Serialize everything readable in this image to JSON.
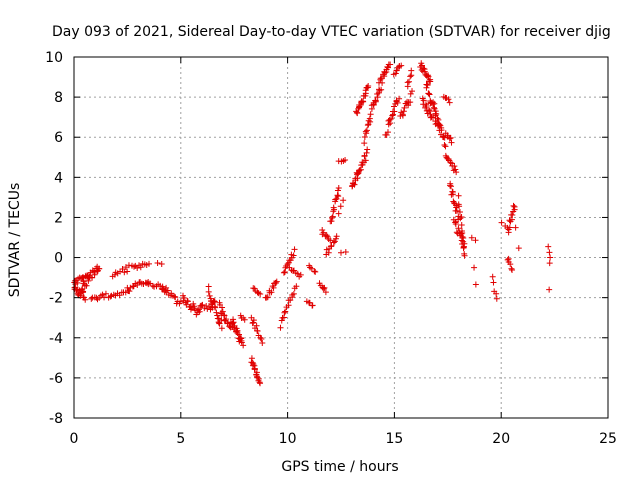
{
  "chart_data": {
    "type": "scatter",
    "title": "Day 093 of 2021, Sidereal Day-to-day VTEC variation (SDTVAR) for receiver djig",
    "xlabel": "GPS time / hours",
    "ylabel": "SDTVAR / TECUs",
    "xlim": [
      0,
      25
    ],
    "ylim": [
      -8,
      10
    ],
    "xticks": [
      0,
      5,
      10,
      15,
      20,
      25
    ],
    "yticks": [
      -8,
      -6,
      -4,
      -2,
      0,
      2,
      4,
      6,
      8,
      10
    ],
    "grid": true,
    "marker": "+",
    "color": "#e00000",
    "series": [
      {
        "name": "SDTVAR",
        "segments": [
          {
            "x0": 0.0,
            "x1": 0.5,
            "y0": -1.5,
            "y1": -1.9,
            "n": 20,
            "spread": 0.5
          },
          {
            "x0": 0.0,
            "x1": 0.7,
            "y0": -1.2,
            "y1": -1.0,
            "n": 14,
            "spread": 0.3
          },
          {
            "x0": 0.4,
            "x1": 1.2,
            "y0": -1.5,
            "y1": -0.4,
            "n": 24,
            "spread": 0.5
          },
          {
            "x0": 0.8,
            "x1": 1.5,
            "y0": -2.1,
            "y1": -1.9,
            "n": 10,
            "spread": 0.2
          },
          {
            "x0": 1.6,
            "x1": 2.6,
            "y0": -2.0,
            "y1": -1.7,
            "n": 12,
            "spread": 0.2
          },
          {
            "x0": 1.8,
            "x1": 2.6,
            "y0": -0.9,
            "y1": -0.5,
            "n": 10,
            "spread": 0.3
          },
          {
            "x0": 2.5,
            "x1": 3.5,
            "y0": -1.6,
            "y1": -1.1,
            "n": 14,
            "spread": 0.3
          },
          {
            "x0": 2.7,
            "x1": 3.5,
            "y0": -0.5,
            "y1": -0.3,
            "n": 10,
            "spread": 0.2
          },
          {
            "x0": 3.5,
            "x1": 4.3,
            "y0": -1.3,
            "y1": -1.5,
            "n": 10,
            "spread": 0.2
          },
          {
            "x0": 3.9,
            "x1": 4.1,
            "y0": -0.3,
            "y1": -0.3,
            "n": 2,
            "spread": 0.1
          },
          {
            "x0": 4.1,
            "x1": 5.0,
            "y0": -1.5,
            "y1": -2.3,
            "n": 16,
            "spread": 0.3
          },
          {
            "x0": 5.1,
            "x1": 5.9,
            "y0": -2.1,
            "y1": -2.8,
            "n": 20,
            "spread": 0.4
          },
          {
            "x0": 5.9,
            "x1": 6.5,
            "y0": -2.3,
            "y1": -2.6,
            "n": 10,
            "spread": 0.3
          },
          {
            "x0": 6.3,
            "x1": 6.9,
            "y0": -1.6,
            "y1": -3.3,
            "n": 22,
            "spread": 0.5
          },
          {
            "x0": 6.8,
            "x1": 7.4,
            "y0": -2.5,
            "y1": -3.4,
            "n": 18,
            "spread": 0.5
          },
          {
            "x0": 7.4,
            "x1": 7.9,
            "y0": -3.2,
            "y1": -4.3,
            "n": 22,
            "spread": 0.4
          },
          {
            "x0": 7.8,
            "x1": 8.0,
            "y0": -2.9,
            "y1": -3.1,
            "n": 4,
            "spread": 0.1
          },
          {
            "x0": 8.3,
            "x1": 8.7,
            "y0": -5.1,
            "y1": -6.3,
            "n": 18,
            "spread": 0.2
          },
          {
            "x0": 8.3,
            "x1": 8.8,
            "y0": -3.0,
            "y1": -4.1,
            "n": 12,
            "spread": 0.4
          },
          {
            "x0": 8.4,
            "x1": 8.7,
            "y0": -1.6,
            "y1": -1.8,
            "n": 6,
            "spread": 0.2
          },
          {
            "x0": 9.0,
            "x1": 9.5,
            "y0": -2.0,
            "y1": -1.2,
            "n": 12,
            "spread": 0.3
          },
          {
            "x0": 9.5,
            "x1": 9.8,
            "y0": -3.5,
            "y1": -3.5,
            "n": 1,
            "spread": 0.0
          },
          {
            "x0": 9.7,
            "x1": 10.4,
            "y0": -3.1,
            "y1": -1.5,
            "n": 14,
            "spread": 0.3
          },
          {
            "x0": 9.8,
            "x1": 10.3,
            "y0": -0.8,
            "y1": 0.3,
            "n": 12,
            "spread": 0.3
          },
          {
            "x0": 10.1,
            "x1": 10.6,
            "y0": -0.6,
            "y1": -0.9,
            "n": 8,
            "spread": 0.2
          },
          {
            "x0": 10.9,
            "x1": 11.2,
            "y0": -2.2,
            "y1": -2.4,
            "n": 5,
            "spread": 0.1
          },
          {
            "x0": 11.0,
            "x1": 11.3,
            "y0": -0.4,
            "y1": -0.8,
            "n": 5,
            "spread": 0.2
          },
          {
            "x0": 11.5,
            "x1": 11.8,
            "y0": -1.3,
            "y1": -1.7,
            "n": 6,
            "spread": 0.3
          },
          {
            "x0": 11.6,
            "x1": 12.0,
            "y0": 1.3,
            "y1": 0.8,
            "n": 8,
            "spread": 0.2
          },
          {
            "x0": 11.8,
            "x1": 12.3,
            "y0": 0.2,
            "y1": 1.0,
            "n": 10,
            "spread": 0.3
          },
          {
            "x0": 12.0,
            "x1": 12.4,
            "y0": 1.8,
            "y1": 3.4,
            "n": 14,
            "spread": 0.3
          },
          {
            "x0": 12.4,
            "x1": 12.7,
            "y0": 4.8,
            "y1": 4.9,
            "n": 4,
            "spread": 0.1
          },
          {
            "x0": 12.4,
            "x1": 12.6,
            "y0": 2.2,
            "y1": 2.9,
            "n": 3,
            "spread": 0.1
          },
          {
            "x0": 12.5,
            "x1": 12.7,
            "y0": 0.2,
            "y1": 0.3,
            "n": 2,
            "spread": 0.1
          },
          {
            "x0": 13.0,
            "x1": 13.7,
            "y0": 3.5,
            "y1": 5.2,
            "n": 24,
            "spread": 0.5
          },
          {
            "x0": 13.2,
            "x1": 13.8,
            "y0": 7.2,
            "y1": 8.5,
            "n": 22,
            "spread": 0.3
          },
          {
            "x0": 13.6,
            "x1": 14.0,
            "y0": 5.8,
            "y1": 7.6,
            "n": 14,
            "spread": 0.3
          },
          {
            "x0": 14.0,
            "x1": 14.4,
            "y0": 7.6,
            "y1": 8.6,
            "n": 12,
            "spread": 0.3
          },
          {
            "x0": 14.3,
            "x1": 14.8,
            "y0": 8.8,
            "y1": 9.6,
            "n": 14,
            "spread": 0.2
          },
          {
            "x0": 14.6,
            "x1": 15.2,
            "y0": 6.2,
            "y1": 8.0,
            "n": 18,
            "spread": 0.4
          },
          {
            "x0": 15.0,
            "x1": 15.3,
            "y0": 9.2,
            "y1": 9.6,
            "n": 8,
            "spread": 0.2
          },
          {
            "x0": 15.3,
            "x1": 15.8,
            "y0": 7.0,
            "y1": 8.1,
            "n": 14,
            "spread": 0.4
          },
          {
            "x0": 15.6,
            "x1": 15.8,
            "y0": 8.5,
            "y1": 9.2,
            "n": 6,
            "spread": 0.3
          },
          {
            "x0": 16.2,
            "x1": 16.7,
            "y0": 9.6,
            "y1": 8.8,
            "n": 16,
            "spread": 0.3
          },
          {
            "x0": 16.3,
            "x1": 16.8,
            "y0": 7.8,
            "y1": 7.0,
            "n": 14,
            "spread": 0.4
          },
          {
            "x0": 16.5,
            "x1": 17.1,
            "y0": 8.6,
            "y1": 6.6,
            "n": 22,
            "spread": 0.5
          },
          {
            "x0": 16.9,
            "x1": 17.4,
            "y0": 7.0,
            "y1": 5.7,
            "n": 18,
            "spread": 0.4
          },
          {
            "x0": 17.3,
            "x1": 17.6,
            "y0": 8.1,
            "y1": 7.8,
            "n": 5,
            "spread": 0.2
          },
          {
            "x0": 17.4,
            "x1": 17.7,
            "y0": 6.2,
            "y1": 5.8,
            "n": 6,
            "spread": 0.2
          },
          {
            "x0": 17.4,
            "x1": 17.9,
            "y0": 5.0,
            "y1": 4.3,
            "n": 12,
            "spread": 0.3
          },
          {
            "x0": 17.6,
            "x1": 18.0,
            "y0": 3.6,
            "y1": 2.0,
            "n": 16,
            "spread": 0.4
          },
          {
            "x0": 17.8,
            "x1": 18.3,
            "y0": 1.8,
            "y1": 0.5,
            "n": 16,
            "spread": 0.4
          },
          {
            "x0": 18.0,
            "x1": 18.3,
            "y0": 3.0,
            "y1": 0.1,
            "n": 14,
            "spread": 0.3
          },
          {
            "x0": 18.6,
            "x1": 18.8,
            "y0": 1.0,
            "y1": 0.9,
            "n": 2,
            "spread": 0.1
          },
          {
            "x0": 18.7,
            "x1": 18.8,
            "y0": -0.5,
            "y1": -1.3,
            "n": 2,
            "spread": 0.1
          },
          {
            "x0": 19.6,
            "x1": 19.8,
            "y0": -1.0,
            "y1": -2.1,
            "n": 5,
            "spread": 0.3
          },
          {
            "x0": 20.0,
            "x1": 20.2,
            "y0": 1.7,
            "y1": 1.6,
            "n": 2,
            "spread": 0.1
          },
          {
            "x0": 20.3,
            "x1": 20.6,
            "y0": 1.3,
            "y1": 2.5,
            "n": 12,
            "spread": 0.4
          },
          {
            "x0": 20.3,
            "x1": 20.5,
            "y0": -0.1,
            "y1": -0.6,
            "n": 6,
            "spread": 0.3
          },
          {
            "x0": 20.6,
            "x1": 20.8,
            "y0": 2.4,
            "y1": 0.5,
            "n": 3,
            "spread": 0.1
          },
          {
            "x0": 22.2,
            "x1": 22.3,
            "y0": 0.5,
            "y1": -0.3,
            "n": 4,
            "spread": 0.1
          },
          {
            "x0": 22.2,
            "x1": 22.3,
            "y0": -1.6,
            "y1": -1.6,
            "n": 1,
            "spread": 0.0
          }
        ]
      }
    ]
  }
}
